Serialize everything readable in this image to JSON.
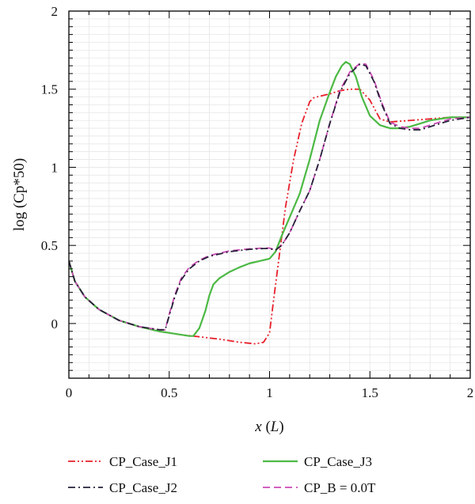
{
  "chart_data": {
    "type": "line",
    "title": "",
    "xlabel_parts": [
      "x",
      " (",
      "L",
      ")"
    ],
    "ylabel": "log (Cp*50)",
    "xlim": [
      0,
      2
    ],
    "ylim": [
      -0.35,
      2
    ],
    "xticks": [
      0,
      0.5,
      1,
      1.5,
      2
    ],
    "xtick_labels": [
      "0",
      "0.5",
      "1",
      "1.5",
      "2"
    ],
    "yticks": [
      0,
      0.5,
      1,
      1.5,
      2
    ],
    "ytick_labels": [
      "0",
      "0.5",
      "1",
      "1.5",
      "2"
    ],
    "grid": true,
    "legend_position": "bottom",
    "series": [
      {
        "name": "CP_Case_J1",
        "color": "#e8202a",
        "dash": "dash-dot-dot",
        "x": [
          0.0,
          0.03,
          0.08,
          0.15,
          0.25,
          0.35,
          0.45,
          0.55,
          0.65,
          0.75,
          0.85,
          0.93,
          0.97,
          1.0,
          1.02,
          1.05,
          1.08,
          1.12,
          1.16,
          1.2,
          1.22,
          1.25,
          1.3,
          1.35,
          1.4,
          1.45,
          1.5,
          1.55,
          1.6,
          1.7,
          1.8,
          1.9,
          2.0
        ],
        "y": [
          0.4,
          0.27,
          0.17,
          0.09,
          0.02,
          -0.02,
          -0.05,
          -0.07,
          -0.085,
          -0.1,
          -0.12,
          -0.13,
          -0.12,
          -0.06,
          0.15,
          0.45,
          0.75,
          1.05,
          1.28,
          1.42,
          1.445,
          1.455,
          1.47,
          1.49,
          1.5,
          1.5,
          1.43,
          1.31,
          1.29,
          1.3,
          1.31,
          1.32,
          1.32
        ]
      },
      {
        "name": "CP_Case_J2",
        "color": "#27203a",
        "dash": "dash-dot",
        "x": [
          0.0,
          0.03,
          0.08,
          0.15,
          0.25,
          0.35,
          0.45,
          0.48,
          0.5,
          0.53,
          0.56,
          0.6,
          0.65,
          0.7,
          0.8,
          0.9,
          0.97,
          1.0,
          1.03,
          1.06,
          1.1,
          1.15,
          1.2,
          1.25,
          1.3,
          1.35,
          1.4,
          1.45,
          1.48,
          1.52,
          1.56,
          1.6,
          1.65,
          1.7,
          1.75,
          1.8,
          1.9,
          2.0
        ],
        "y": [
          0.4,
          0.27,
          0.17,
          0.09,
          0.02,
          -0.02,
          -0.04,
          -0.04,
          0.05,
          0.18,
          0.28,
          0.35,
          0.4,
          0.43,
          0.46,
          0.475,
          0.48,
          0.48,
          0.47,
          0.5,
          0.58,
          0.72,
          0.85,
          1.05,
          1.28,
          1.48,
          1.6,
          1.66,
          1.65,
          1.55,
          1.4,
          1.28,
          1.25,
          1.24,
          1.24,
          1.26,
          1.3,
          1.32
        ]
      },
      {
        "name": "CP_Case_J3",
        "color": "#4cb944",
        "dash": "solid",
        "x": [
          0.0,
          0.03,
          0.08,
          0.15,
          0.25,
          0.35,
          0.45,
          0.55,
          0.6,
          0.62,
          0.65,
          0.68,
          0.7,
          0.72,
          0.75,
          0.8,
          0.85,
          0.9,
          0.95,
          1.0,
          1.03,
          1.06,
          1.1,
          1.15,
          1.2,
          1.25,
          1.3,
          1.33,
          1.36,
          1.38,
          1.4,
          1.43,
          1.46,
          1.5,
          1.55,
          1.6,
          1.65,
          1.7,
          1.75,
          1.8,
          1.9,
          2.0
        ],
        "y": [
          0.4,
          0.27,
          0.17,
          0.09,
          0.02,
          -0.02,
          -0.05,
          -0.07,
          -0.08,
          -0.08,
          -0.03,
          0.08,
          0.18,
          0.25,
          0.29,
          0.33,
          0.36,
          0.385,
          0.4,
          0.415,
          0.46,
          0.56,
          0.68,
          0.83,
          1.05,
          1.3,
          1.48,
          1.58,
          1.65,
          1.675,
          1.66,
          1.58,
          1.45,
          1.33,
          1.27,
          1.25,
          1.25,
          1.26,
          1.28,
          1.3,
          1.32,
          1.32
        ]
      },
      {
        "name": "CP_B = 0.0T",
        "color": "#cc4ab4",
        "dash": "dash",
        "x": [
          0.0,
          0.03,
          0.08,
          0.15,
          0.25,
          0.35,
          0.45,
          0.48,
          0.5,
          0.53,
          0.56,
          0.6,
          0.65,
          0.7,
          0.8,
          0.9,
          0.97,
          1.0,
          1.03,
          1.06,
          1.1,
          1.15,
          1.2,
          1.25,
          1.3,
          1.35,
          1.4,
          1.45,
          1.48,
          1.52,
          1.56,
          1.6,
          1.65,
          1.7,
          1.75,
          1.8,
          1.9,
          2.0
        ],
        "y": [
          0.4,
          0.27,
          0.17,
          0.09,
          0.02,
          -0.02,
          -0.04,
          -0.04,
          0.06,
          0.19,
          0.29,
          0.36,
          0.405,
          0.435,
          0.465,
          0.478,
          0.483,
          0.483,
          0.47,
          0.5,
          0.58,
          0.72,
          0.85,
          1.05,
          1.28,
          1.49,
          1.61,
          1.665,
          1.66,
          1.56,
          1.41,
          1.29,
          1.26,
          1.25,
          1.25,
          1.27,
          1.31,
          1.32
        ]
      }
    ]
  }
}
